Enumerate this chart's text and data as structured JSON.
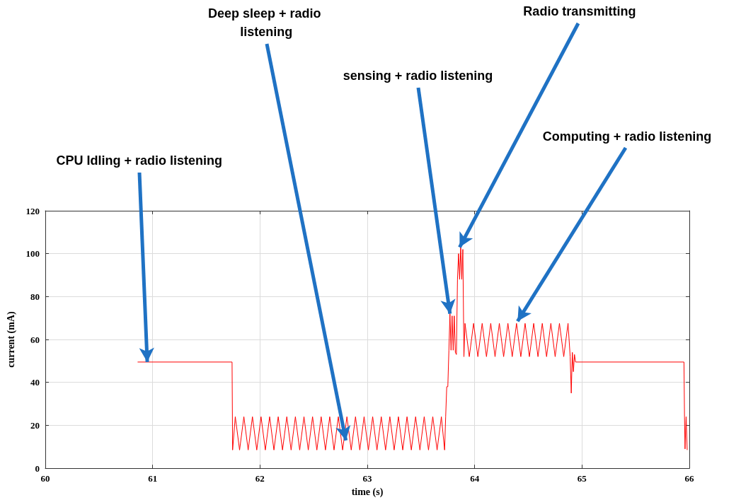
{
  "chart_data": {
    "type": "line",
    "xlabel": "time (s)",
    "ylabel": "current (mA)",
    "xlim": [
      60,
      66
    ],
    "xticks": [
      60,
      61,
      62,
      63,
      64,
      65,
      66
    ],
    "ylim": [
      0,
      120
    ],
    "yticks": [
      0,
      20,
      40,
      60,
      80,
      100,
      120
    ],
    "grid": true,
    "marker": "none",
    "line_style": "solid",
    "series": [
      {
        "color": "#ff0000",
        "x": [
          60.86,
          61.74,
          61.745,
          61.77,
          61.81,
          61.85,
          61.89,
          61.93,
          61.97,
          62.01,
          62.05,
          62.09,
          62.13,
          62.17,
          62.21,
          62.25,
          62.29,
          62.33,
          62.37,
          62.41,
          62.45,
          62.49,
          62.53,
          62.57,
          62.61,
          62.65,
          62.69,
          62.73,
          62.77,
          62.81,
          62.85,
          62.89,
          62.93,
          62.97,
          63.01,
          63.05,
          63.09,
          63.13,
          63.17,
          63.21,
          63.25,
          63.29,
          63.33,
          63.37,
          63.41,
          63.45,
          63.49,
          63.53,
          63.57,
          63.61,
          63.65,
          63.69,
          63.72,
          63.73,
          63.74,
          63.75,
          63.76,
          63.77,
          63.78,
          63.79,
          63.8,
          63.81,
          63.82,
          63.83,
          63.84,
          63.85,
          63.86,
          63.87,
          63.88,
          63.89,
          63.9,
          63.91,
          63.95,
          63.99,
          64.03,
          64.07,
          64.11,
          64.15,
          64.19,
          64.23,
          64.27,
          64.31,
          64.35,
          64.39,
          64.43,
          64.47,
          64.51,
          64.55,
          64.59,
          64.63,
          64.67,
          64.71,
          64.75,
          64.79,
          64.83,
          64.87,
          64.89,
          64.9,
          64.91,
          64.92,
          64.93,
          64.94,
          65.95,
          65.955,
          65.96,
          65.97,
          65.98
        ],
        "values": [
          49.5,
          49.5,
          8.5,
          24,
          8.5,
          24,
          8.5,
          24,
          8.5,
          24,
          8.5,
          24,
          8.5,
          24,
          8.5,
          24,
          8.5,
          24,
          8.5,
          24,
          8.5,
          24,
          8.5,
          24,
          8.5,
          24,
          8.5,
          24,
          8.5,
          24,
          8.5,
          24,
          8.5,
          24,
          8.5,
          24,
          8.5,
          24,
          8.5,
          24,
          8.5,
          24,
          8.5,
          24,
          8.5,
          24,
          8.5,
          24,
          8.5,
          24,
          8.5,
          24,
          8.5,
          24,
          38,
          38,
          55,
          72,
          55,
          71,
          55,
          71,
          54,
          53,
          88,
          100,
          88,
          103,
          88,
          102,
          52,
          67.5,
          52,
          67.5,
          52,
          67.5,
          52,
          67.5,
          52,
          67.5,
          52,
          67.5,
          52,
          67.5,
          52,
          67.5,
          52,
          67.5,
          52,
          67.5,
          52,
          67.5,
          52,
          67.5,
          52,
          67.5,
          52,
          35,
          54,
          45,
          53,
          49.5,
          49.5,
          24,
          9,
          24,
          8.5
        ]
      }
    ],
    "annotations": [
      {
        "text": "CPU Idling + radio listening",
        "x": 60.95,
        "y": 49.5
      },
      {
        "text": "Deep sleep + radio listening",
        "x": 62.8,
        "y": 13
      },
      {
        "text": "sensing + radio listening",
        "x": 63.77,
        "y": 72
      },
      {
        "text": "Radio transmitting",
        "x": 63.86,
        "y": 103
      },
      {
        "text": "Computing + radio listening",
        "x": 64.4,
        "y": 68.5
      }
    ]
  }
}
